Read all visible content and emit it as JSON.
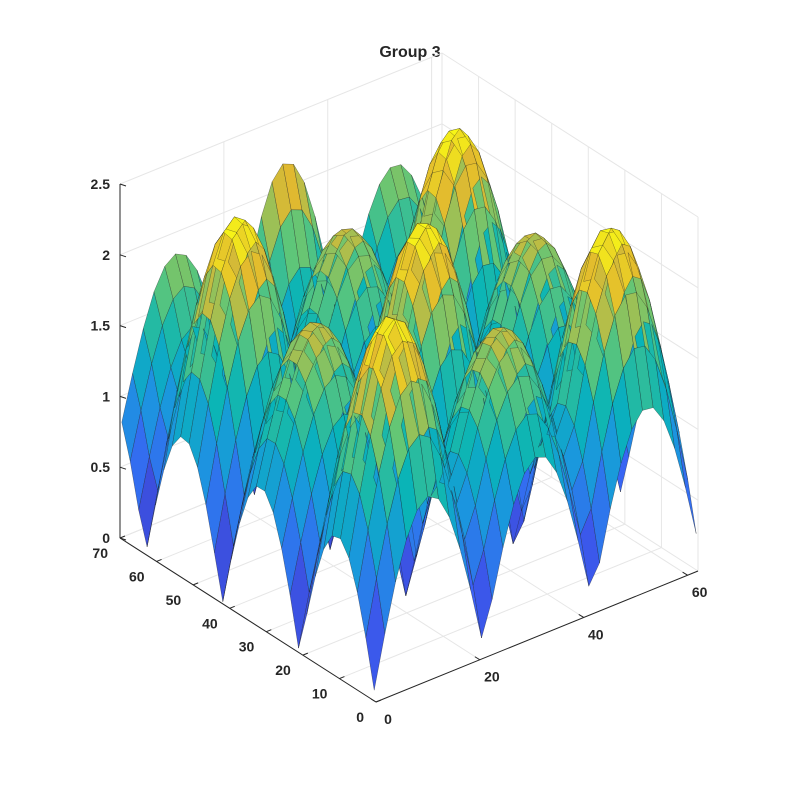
{
  "chart_data": {
    "type": "surface",
    "title": "Group 3",
    "xlabel": "",
    "ylabel": "",
    "zlabel": "",
    "x_range": [
      0,
      62
    ],
    "y_range": [
      0,
      70
    ],
    "z_range": [
      0,
      2.5
    ],
    "x_ticks": [
      {
        "value": 0,
        "label": "0"
      },
      {
        "value": 20,
        "label": "20"
      },
      {
        "value": 40,
        "label": "40"
      },
      {
        "value": 60,
        "label": "60"
      }
    ],
    "y_ticks": [
      {
        "value": 0,
        "label": "0"
      },
      {
        "value": 10,
        "label": "10"
      },
      {
        "value": 20,
        "label": "20"
      },
      {
        "value": 30,
        "label": "30"
      },
      {
        "value": 40,
        "label": "40"
      },
      {
        "value": 50,
        "label": "50"
      },
      {
        "value": 60,
        "label": "60"
      },
      {
        "value": 70,
        "label": "70"
      }
    ],
    "z_ticks": [
      {
        "value": 0,
        "label": "0"
      },
      {
        "value": 0.5,
        "label": "0.5"
      },
      {
        "value": 1,
        "label": "1"
      },
      {
        "value": 1.5,
        "label": "1.5"
      },
      {
        "value": 2,
        "label": "2"
      },
      {
        "value": 2.5,
        "label": "2.5"
      }
    ],
    "grid": true,
    "colormap": "parula",
    "surface_function": "1.2*|sin(pi*x/21)| + |sin(pi*y/21)| + 0.2*sin(pi*x/21)*sin(pi*y/21)",
    "grid_samples": {
      "x_count": 31,
      "y_count": 31
    },
    "view": "3d-isometric",
    "colors": {
      "background": "#ffffff",
      "axis": "#262626",
      "grid": "#e6e6e6",
      "mesh_edge": "#1a1a1a"
    }
  }
}
